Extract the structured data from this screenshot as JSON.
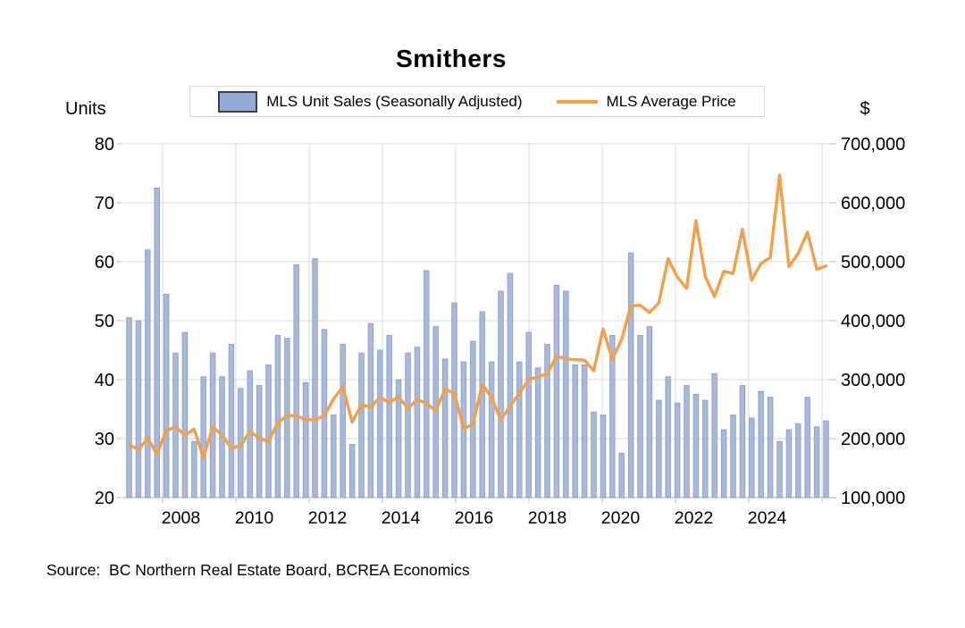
{
  "chart_data": {
    "type": "combo (bar + line)",
    "title": "Smithers",
    "left_axis_title": "Units",
    "right_axis_title": "$",
    "left_axis_range": [
      20,
      80
    ],
    "right_axis_range": [
      100000,
      700000
    ],
    "left_ticks": [
      "80",
      "70",
      "60",
      "50",
      "40",
      "30",
      "20"
    ],
    "right_ticks": [
      "700,000",
      "600,000",
      "500,000",
      "400,000",
      "300,000",
      "200,000",
      "100,000"
    ],
    "x_ticks": [
      "2008",
      "2010",
      "2012",
      "2014",
      "2016",
      "2018",
      "2020",
      "2022",
      "2024"
    ],
    "grid": true,
    "legend_position": "top-center",
    "n_points": 76,
    "series": [
      {
        "name": "MLS Unit Sales (Seasonally Adjusted)",
        "type": "bar",
        "axis": "left",
        "values": [
          50.5,
          50,
          62,
          72.5,
          54.5,
          44.5,
          48,
          29.5,
          40.5,
          44.5,
          40.5,
          46,
          38.5,
          41.5,
          39,
          42.5,
          47.5,
          47,
          59.5,
          39.5,
          60.5,
          48.5,
          34,
          46,
          29,
          44.5,
          49.5,
          45,
          47.5,
          40,
          44.5,
          45.5,
          58.5,
          49,
          43.5,
          53,
          43,
          46.5,
          51.5,
          43,
          55,
          58,
          43,
          48,
          42,
          46,
          56,
          55,
          42.5,
          42.5,
          34.5,
          34,
          47.5,
          27.5,
          61.5,
          47.5,
          49,
          36.5,
          40.5,
          36,
          39,
          37.5,
          36.5,
          41,
          31.5,
          34,
          39,
          33.5,
          38,
          37,
          29.5,
          31.5,
          32.5,
          37,
          32,
          33
        ]
      },
      {
        "name": "MLS Average Price",
        "type": "line",
        "axis": "right",
        "values": [
          190000,
          181000,
          200000,
          174000,
          214000,
          220000,
          206000,
          216000,
          168000,
          220000,
          206000,
          184000,
          188000,
          212000,
          201000,
          195000,
          227000,
          239000,
          239000,
          232000,
          232000,
          239000,
          267000,
          288000,
          228000,
          257000,
          254000,
          270000,
          261000,
          271000,
          251000,
          266000,
          260000,
          247000,
          284000,
          277000,
          217000,
          224000,
          292000,
          270000,
          232000,
          255000,
          277000,
          300000,
          305000,
          310000,
          340000,
          335000,
          334000,
          333000,
          315000,
          386000,
          335000,
          368000,
          425000,
          426000,
          414000,
          430000,
          505000,
          474000,
          455000,
          570000,
          475000,
          441000,
          484000,
          480000,
          555000,
          469000,
          497000,
          507000,
          647000,
          492000,
          514000,
          550000,
          487000,
          493000
        ]
      }
    ],
    "colors": {
      "bar_fill": "#a9b8db",
      "bar_border": "#8fa3c9",
      "line": "#f0a14e",
      "gridline": "#d9d9d9",
      "axis_line": "#bfbfbf",
      "text": "#000000",
      "legend_swatch_fill": "#94abd7",
      "legend_swatch_border": "#3f3f3f"
    },
    "source_note": "Source:  BC Northern Real Estate Board, BCREA Economics"
  }
}
